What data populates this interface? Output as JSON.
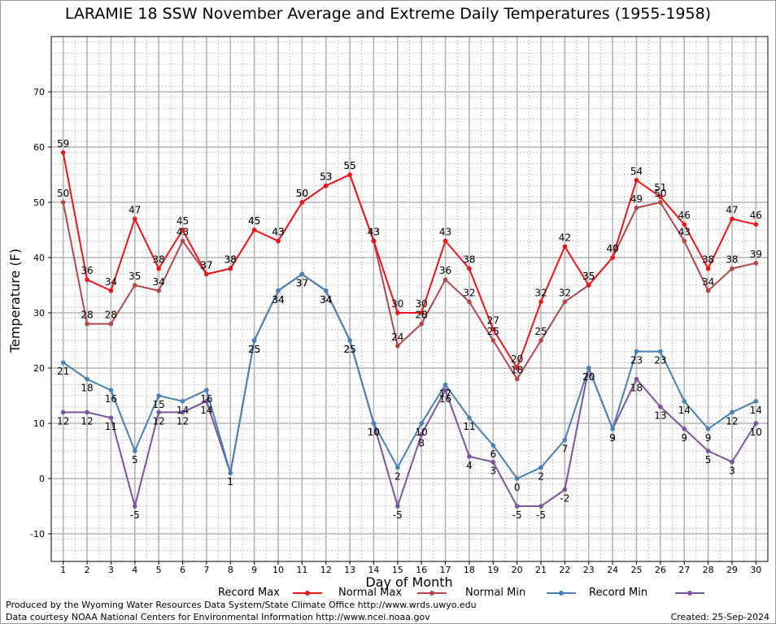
{
  "title": "LARAMIE 18 SSW November Average and Extreme Daily Temperatures (1955-1958)",
  "footer": {
    "line1": "Produced by the Wyoming Water Resources Data System/State Climate Office http://www.wrds.uwyo.edu",
    "line2": "Data courtesy NOAA National Centers for Environmental Information http://www.ncei.noaa.gov",
    "created": "Created:  25-Sep-2024"
  },
  "chart_data": {
    "type": "line",
    "title": "LARAMIE 18 SSW November Average and Extreme Daily Temperatures (1955-1958)",
    "xlabel": "Day of Month",
    "ylabel": "Temperature (F)",
    "xlim": [
      0.5,
      30.5
    ],
    "ylim": [
      -15,
      80
    ],
    "yticks": [
      -10,
      0,
      10,
      20,
      30,
      40,
      50,
      60,
      70
    ],
    "x": [
      1,
      2,
      3,
      4,
      5,
      6,
      7,
      8,
      9,
      10,
      11,
      12,
      13,
      14,
      15,
      16,
      17,
      18,
      19,
      20,
      21,
      22,
      23,
      24,
      25,
      26,
      27,
      28,
      29,
      30
    ],
    "grid": true,
    "legend_position": "bottom",
    "series": [
      {
        "name": "Record Max",
        "color": "#e8161b",
        "values": [
          59,
          36,
          34,
          47,
          38,
          45,
          37,
          38,
          45,
          43,
          50,
          53,
          55,
          43,
          30,
          30,
          43,
          38,
          27,
          20,
          32,
          42,
          35,
          40,
          54,
          51,
          46,
          38,
          47,
          46
        ]
      },
      {
        "name": "Normal Max",
        "color": "#b0474a",
        "values": [
          50,
          28,
          28,
          35,
          34,
          43,
          37,
          38,
          45,
          43,
          50,
          53,
          55,
          43,
          24,
          28,
          36,
          32,
          25,
          18,
          25,
          32,
          35,
          40,
          49,
          50,
          43,
          34,
          38,
          39
        ]
      },
      {
        "name": "Normal Min",
        "color": "#4a7fb0",
        "values": [
          21,
          18,
          16,
          5,
          15,
          14,
          16,
          1,
          25,
          34,
          37,
          34,
          25,
          10,
          2,
          10,
          17,
          11,
          6,
          0,
          2,
          7,
          20,
          9,
          23,
          23,
          14,
          9,
          12,
          14
        ]
      },
      {
        "name": "Record Min",
        "color": "#7b559b",
        "values": [
          12,
          12,
          11,
          -5,
          12,
          12,
          14,
          1,
          25,
          34,
          37,
          34,
          25,
          10,
          -5,
          8,
          16,
          4,
          3,
          -5,
          -5,
          -2,
          20,
          9,
          18,
          13,
          9,
          5,
          3,
          10
        ]
      }
    ]
  }
}
